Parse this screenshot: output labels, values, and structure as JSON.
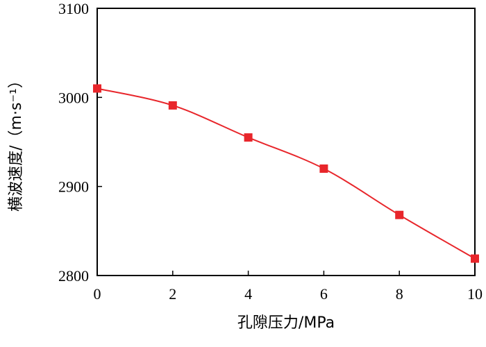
{
  "chart_data": {
    "type": "line",
    "xlabel": "孔隙压力/MPa",
    "ylabel": "横波速度/（m·s⁻¹）",
    "xlim": [
      0,
      10
    ],
    "ylim": [
      2800,
      3100
    ],
    "x_ticks": [
      "0",
      "2",
      "4",
      "6",
      "8",
      "10"
    ],
    "y_ticks": [
      "2800",
      "2900",
      "3000",
      "3100"
    ],
    "grid": false,
    "series": [
      {
        "marker": "square",
        "color": "#e8262b",
        "x": [
          0,
          2,
          4,
          6,
          8,
          10
        ],
        "y": [
          3010,
          2991,
          2955,
          2920,
          2868,
          2819
        ]
      }
    ]
  }
}
